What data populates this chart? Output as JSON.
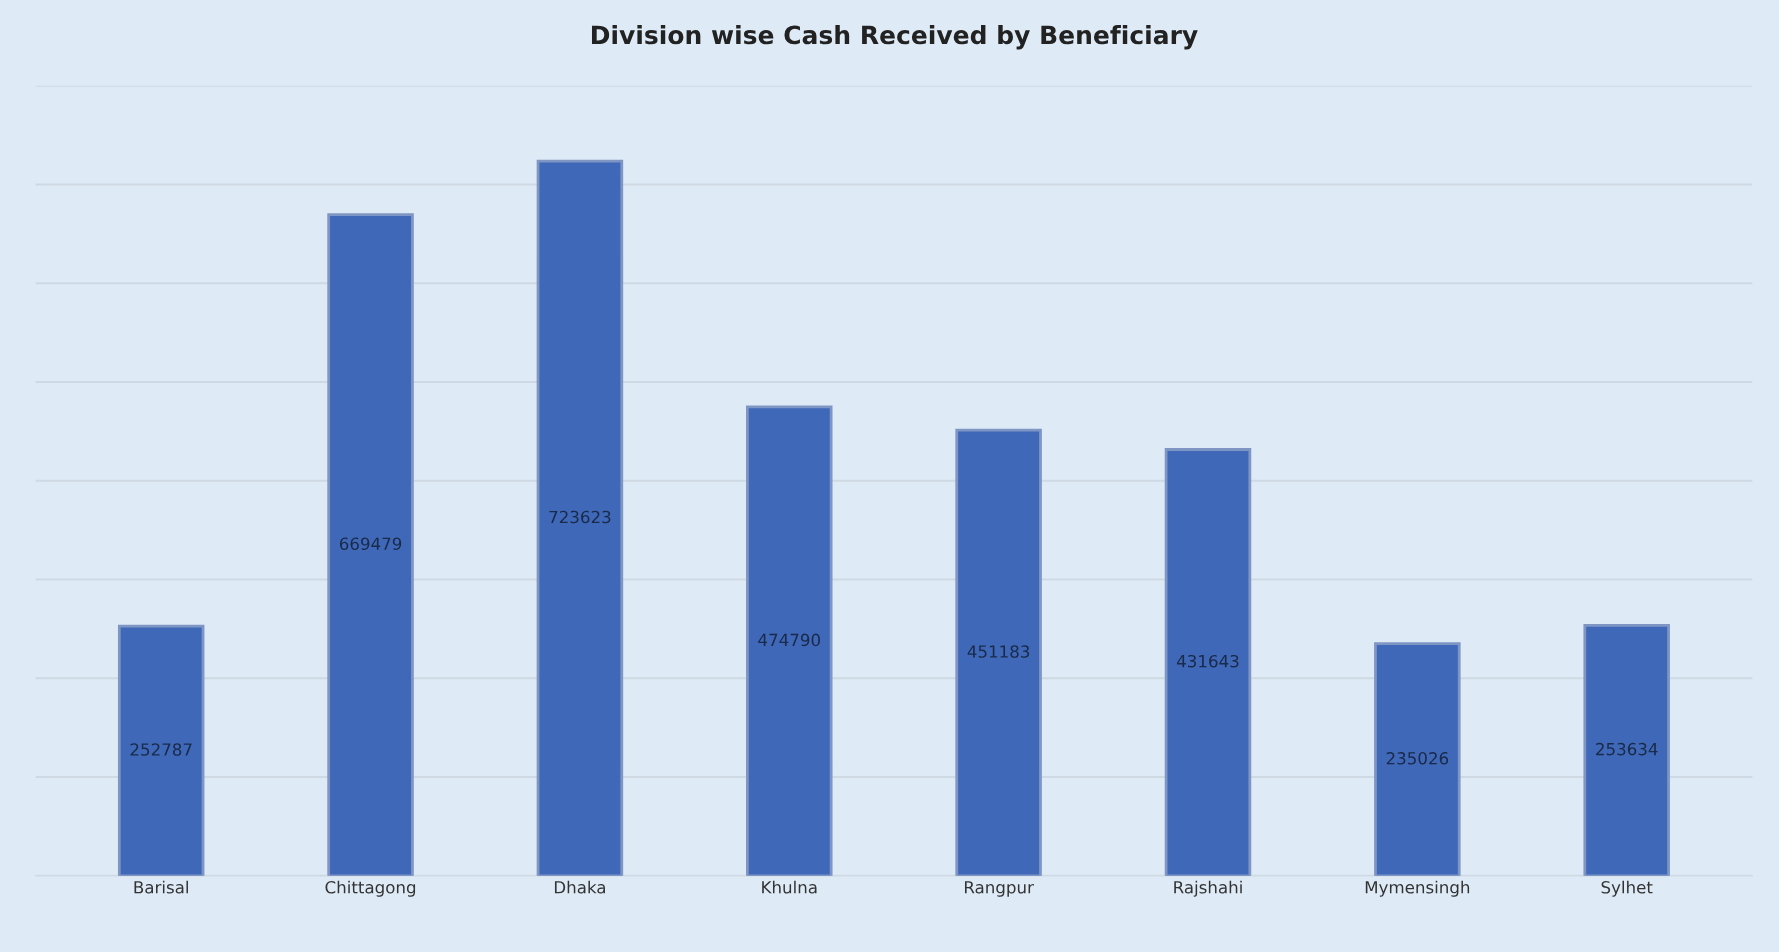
{
  "chart_data": {
    "type": "bar",
    "title": "Division wise Cash Received by Beneficiary",
    "categories": [
      "Barisal",
      "Chittagong",
      "Dhaka",
      "Khulna",
      "Rangpur",
      "Rajshahi",
      "Mymensingh",
      "Sylhet"
    ],
    "values": [
      252787,
      669479,
      723623,
      474790,
      451183,
      431643,
      235026,
      253634
    ],
    "color": "#3f69b8",
    "data_labels": true,
    "ylim": [
      0,
      800000
    ],
    "yticks": [
      {
        "value": 0,
        "label": null
      },
      {
        "value": 100000,
        "label": null
      },
      {
        "value": 200000,
        "label": null
      },
      {
        "value": 300000,
        "label": null
      },
      {
        "value": 400000,
        "label": null
      },
      {
        "value": 500000,
        "label": null
      },
      {
        "value": 600000,
        "label": null
      },
      {
        "value": 700000,
        "label": null
      },
      {
        "value": 800000,
        "label": null
      }
    ],
    "tick_labels": "x",
    "grid": "y"
  }
}
